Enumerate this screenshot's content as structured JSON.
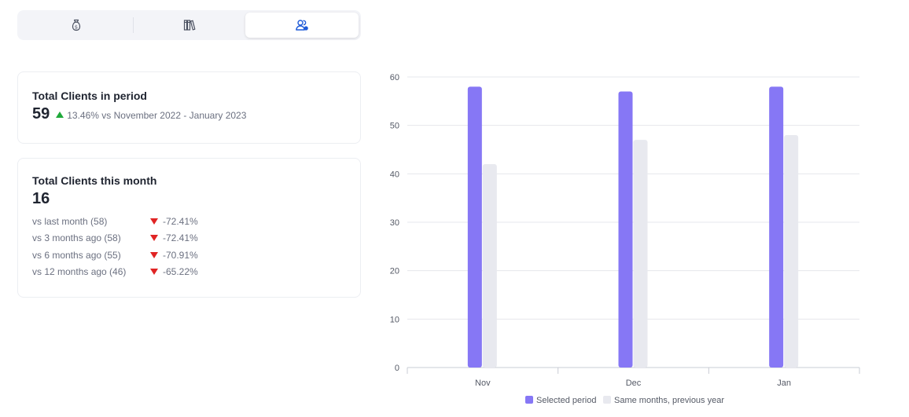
{
  "tabs": [
    {
      "icon": "money-bag-icon",
      "active": false
    },
    {
      "icon": "books-icon",
      "active": false
    },
    {
      "icon": "users-icon",
      "active": true
    }
  ],
  "period_card": {
    "title": "Total Clients in period",
    "value": "59",
    "change": "13.46% vs November 2022 - January 2023",
    "trend": "up"
  },
  "month_card": {
    "title": "Total Clients this month",
    "value": "16",
    "comparisons": [
      {
        "label": "vs last month (58)",
        "change": "-72.41%"
      },
      {
        "label": "vs 3 months ago (58)",
        "change": "-72.41%"
      },
      {
        "label": "vs 6 months ago (55)",
        "change": "-70.91%"
      },
      {
        "label": "vs 12 months ago (46)",
        "change": "-65.22%"
      }
    ]
  },
  "colors": {
    "accent": "#1f5bd8",
    "selected": "#8677f5",
    "previous": "#e8e9ef",
    "up": "#1fa93a",
    "down": "#e02424"
  },
  "chart_data": {
    "type": "bar",
    "categories": [
      "Nov",
      "Dec",
      "Jan"
    ],
    "series": [
      {
        "name": "Selected period",
        "values": [
          58,
          57,
          58
        ]
      },
      {
        "name": "Same months, previous year",
        "values": [
          42,
          47,
          48
        ]
      }
    ],
    "ylim": [
      0,
      60
    ],
    "yticks": [
      0,
      10,
      20,
      30,
      40,
      50,
      60
    ],
    "grid": true,
    "legend": "bottom"
  }
}
